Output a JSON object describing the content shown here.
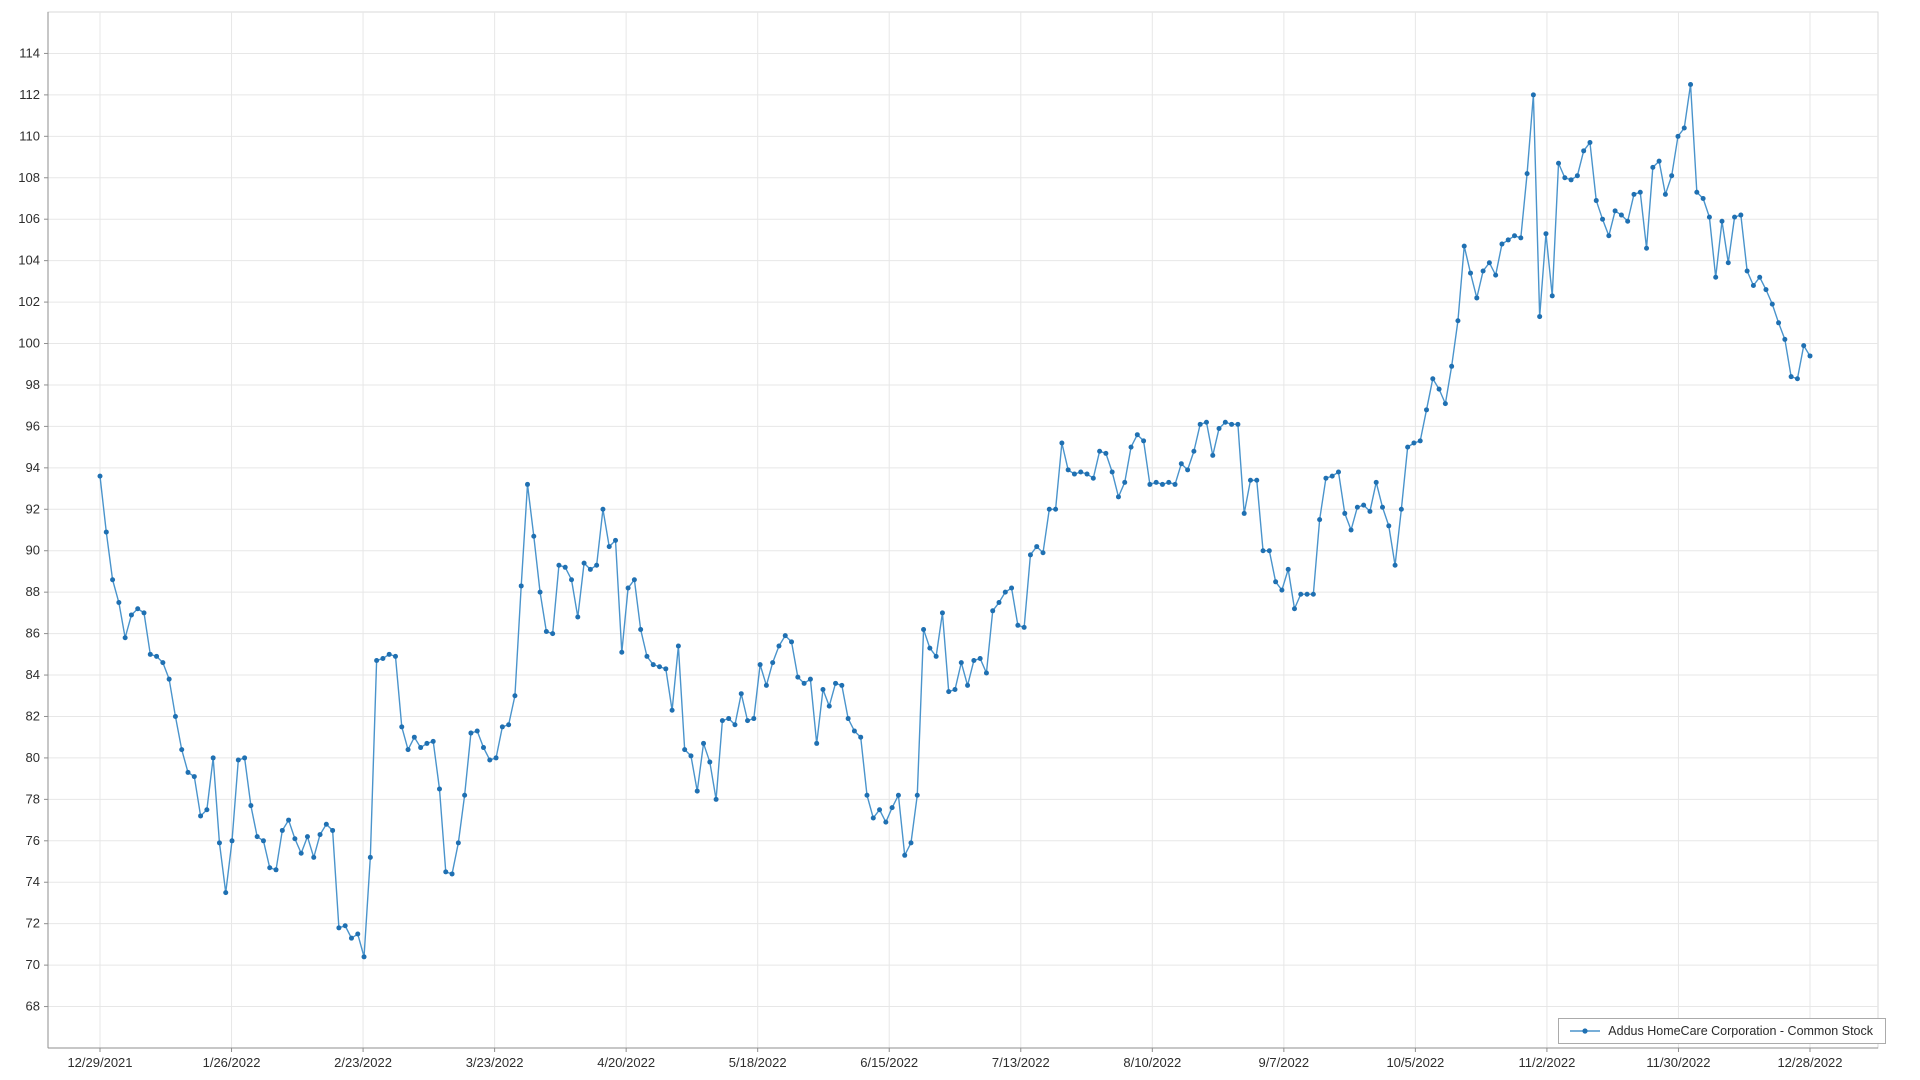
{
  "legend": {
    "label": "Addus HomeCare Corporation - Common Stock"
  },
  "colors": {
    "line": "#4a94cc",
    "marker": "#1f70b2",
    "grid": "#e7e7e7",
    "plot_border": "#d9d9d9",
    "axis": "#8f8f8f",
    "tick_text": "#2e2e2e",
    "legend_border": "#ababab",
    "background": "#ffffff"
  },
  "chart_data": {
    "type": "line",
    "title": "",
    "xlabel": "",
    "ylabel": "",
    "grid": true,
    "legend_position": "bottom-right",
    "marker": "circle",
    "ylim": [
      66,
      116
    ],
    "y_ticks": [
      68,
      70,
      72,
      74,
      76,
      78,
      80,
      82,
      84,
      86,
      88,
      90,
      92,
      94,
      96,
      98,
      100,
      102,
      104,
      106,
      108,
      110,
      112,
      114
    ],
    "x_tick_labels": [
      "12/29/2021",
      "1/26/2022",
      "2/23/2022",
      "3/23/2022",
      "4/20/2022",
      "5/18/2022",
      "6/15/2022",
      "7/13/2022",
      "8/10/2022",
      "9/7/2022",
      "10/5/2022",
      "11/2/2022",
      "11/30/2022",
      "12/28/2022"
    ],
    "series": [
      {
        "name": "Addus HomeCare Corporation - Common Stock",
        "values": [
          93.6,
          90.9,
          88.6,
          87.5,
          85.8,
          86.9,
          87.2,
          87.0,
          85.0,
          84.9,
          84.6,
          83.8,
          82.0,
          80.4,
          79.3,
          79.1,
          77.2,
          77.5,
          80.0,
          75.9,
          73.5,
          76.0,
          79.9,
          80.0,
          77.7,
          76.2,
          76.0,
          74.7,
          74.6,
          76.5,
          77.0,
          76.1,
          75.4,
          76.2,
          75.2,
          76.3,
          76.8,
          76.5,
          71.8,
          71.9,
          71.3,
          71.5,
          70.4,
          75.2,
          84.7,
          84.8,
          85.0,
          84.9,
          81.5,
          80.4,
          81.0,
          80.5,
          80.7,
          80.8,
          78.5,
          74.5,
          74.4,
          75.9,
          78.2,
          81.2,
          81.3,
          80.5,
          79.9,
          80.0,
          81.5,
          81.6,
          83.0,
          88.3,
          93.2,
          90.7,
          88.0,
          86.1,
          86.0,
          89.3,
          89.2,
          88.6,
          86.8,
          89.4,
          89.1,
          89.3,
          92.0,
          90.2,
          90.5,
          85.1,
          88.2,
          88.6,
          86.2,
          84.9,
          84.5,
          84.4,
          84.3,
          82.3,
          85.4,
          80.4,
          80.1,
          78.4,
          80.7,
          79.8,
          78.0,
          81.8,
          81.9,
          81.6,
          83.1,
          81.8,
          81.9,
          84.5,
          83.5,
          84.6,
          85.4,
          85.9,
          85.6,
          83.9,
          83.6,
          83.8,
          80.7,
          83.3,
          82.5,
          83.6,
          83.5,
          81.9,
          81.3,
          81.0,
          78.2,
          77.1,
          77.5,
          76.9,
          77.6,
          78.2,
          75.3,
          75.9,
          78.2,
          86.2,
          85.3,
          84.9,
          87.0,
          83.2,
          83.3,
          84.6,
          83.5,
          84.7,
          84.8,
          84.1,
          87.1,
          87.5,
          88.0,
          88.2,
          86.4,
          86.3,
          89.8,
          90.2,
          89.9,
          92.0,
          92.0,
          95.2,
          93.9,
          93.7,
          93.8,
          93.7,
          93.5,
          94.8,
          94.7,
          93.8,
          92.6,
          93.3,
          95.0,
          95.6,
          95.3,
          93.2,
          93.3,
          93.2,
          93.3,
          93.2,
          94.2,
          93.9,
          94.8,
          96.1,
          96.2,
          94.6,
          95.9,
          96.2,
          96.1,
          96.1,
          91.8,
          93.4,
          93.4,
          90.0,
          90.0,
          88.5,
          88.1,
          89.1,
          87.2,
          87.9,
          87.9,
          87.9,
          91.5,
          93.5,
          93.6,
          93.8,
          91.8,
          91.0,
          92.1,
          92.2,
          91.9,
          93.3,
          92.1,
          91.2,
          89.3,
          92.0,
          95.0,
          95.2,
          95.3,
          96.8,
          98.3,
          97.8,
          97.1,
          98.9,
          101.1,
          104.7,
          103.4,
          102.2,
          103.5,
          103.9,
          103.3,
          104.8,
          105.0,
          105.2,
          105.1,
          108.2,
          112.0,
          101.3,
          105.3,
          102.3,
          108.7,
          108.0,
          107.9,
          108.1,
          109.3,
          109.7,
          106.9,
          106.0,
          105.2,
          106.4,
          106.2,
          105.9,
          107.2,
          107.3,
          104.6,
          108.5,
          108.8,
          107.2,
          108.1,
          110.0,
          110.4,
          112.5,
          107.3,
          107.0,
          106.1,
          103.2,
          105.9,
          103.9,
          106.1,
          106.2,
          103.5,
          102.8,
          103.2,
          102.6,
          101.9,
          101.0,
          100.2,
          98.4,
          98.3,
          99.9,
          99.4
        ]
      }
    ]
  }
}
